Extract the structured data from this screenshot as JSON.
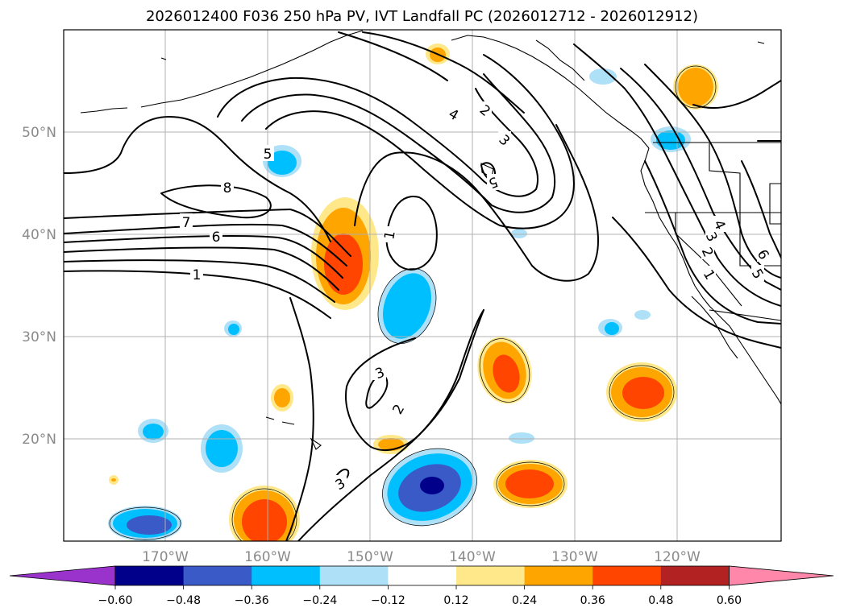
{
  "title": "2026012400 F036 250 hPa PV, IVT Landfall PC (2026012712 - 2026012912)",
  "map": {
    "lon_range": [
      -180,
      -110
    ],
    "lat_range": [
      10,
      60
    ],
    "lon_ticks": [
      {
        "value": -170,
        "label": "170°W"
      },
      {
        "value": -160,
        "label": "160°W"
      },
      {
        "value": -150,
        "label": "150°W"
      },
      {
        "value": -140,
        "label": "140°W"
      },
      {
        "value": -130,
        "label": "130°W"
      },
      {
        "value": -120,
        "label": "120°W"
      }
    ],
    "lat_ticks": [
      {
        "value": 20,
        "label": "20°N"
      },
      {
        "value": 30,
        "label": "30°N"
      },
      {
        "value": 40,
        "label": "40°N"
      },
      {
        "value": 50,
        "label": "50°N"
      }
    ],
    "grid": true
  },
  "contour_labels": [
    "8",
    "7",
    "6",
    "1",
    "5",
    "1",
    "4",
    "2",
    "3",
    "5",
    "3",
    "2",
    "3",
    "4",
    "3",
    "2",
    "1",
    "6",
    "5"
  ],
  "colorbar": {
    "levels": [
      -0.6,
      -0.48,
      -0.36,
      -0.24,
      -0.12,
      0.12,
      0.24,
      0.36,
      0.48,
      0.6
    ],
    "tick_labels": [
      "−0.60",
      "−0.48",
      "−0.36",
      "−0.24",
      "−0.12",
      "0.12",
      "0.24",
      "0.36",
      "0.48",
      "0.60"
    ],
    "colors": [
      "#9933cc",
      "#00008b",
      "#3a5ac8",
      "#00bfff",
      "#aee0f8",
      "#ffffff",
      "#ffe88a",
      "#ffa500",
      "#ff4500",
      "#b22222",
      "#ff88aa"
    ],
    "extend": "both"
  }
}
